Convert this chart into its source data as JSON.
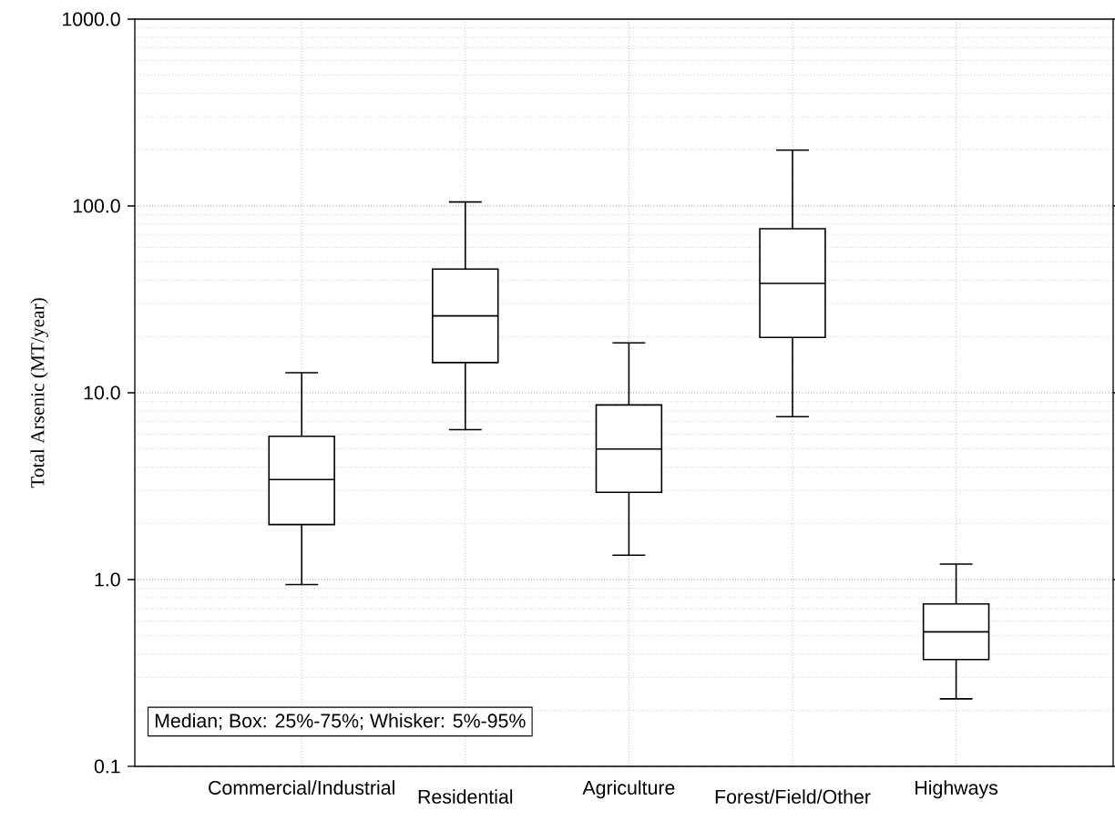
{
  "chart_data": {
    "type": "box",
    "ylabel": "Total Arsenic (MT/year)",
    "categories": [
      "Commercial/Industrial",
      "Residential",
      "Agriculture",
      "Forest/Field/Other",
      "Highways"
    ],
    "boxes": [
      {
        "low": 0.94,
        "q1": 1.97,
        "median": 3.43,
        "q3": 5.85,
        "high": 12.8
      },
      {
        "low": 6.35,
        "q1": 14.5,
        "median": 25.8,
        "q3": 45.9,
        "high": 105
      },
      {
        "low": 1.35,
        "q1": 2.93,
        "median": 5.0,
        "q3": 8.6,
        "high": 18.5
      },
      {
        "low": 7.45,
        "q1": 19.8,
        "median": 38.5,
        "q3": 75.5,
        "high": 199
      },
      {
        "low": 0.23,
        "q1": 0.373,
        "median": 0.525,
        "q3": 0.74,
        "high": 1.21
      }
    ],
    "ylim": [
      0.1,
      1000
    ],
    "yticks": [
      {
        "value": 0.1,
        "label": "0.1"
      },
      {
        "value": 1,
        "label": "1.0"
      },
      {
        "value": 10,
        "label": "10.0"
      },
      {
        "value": 100,
        "label": "100.0"
      },
      {
        "value": 1000,
        "label": "1000.0"
      }
    ],
    "log": true,
    "grid": true,
    "annotations": [
      "Median; Box: 25%-75%; Whisker: 5%-95%"
    ]
  }
}
